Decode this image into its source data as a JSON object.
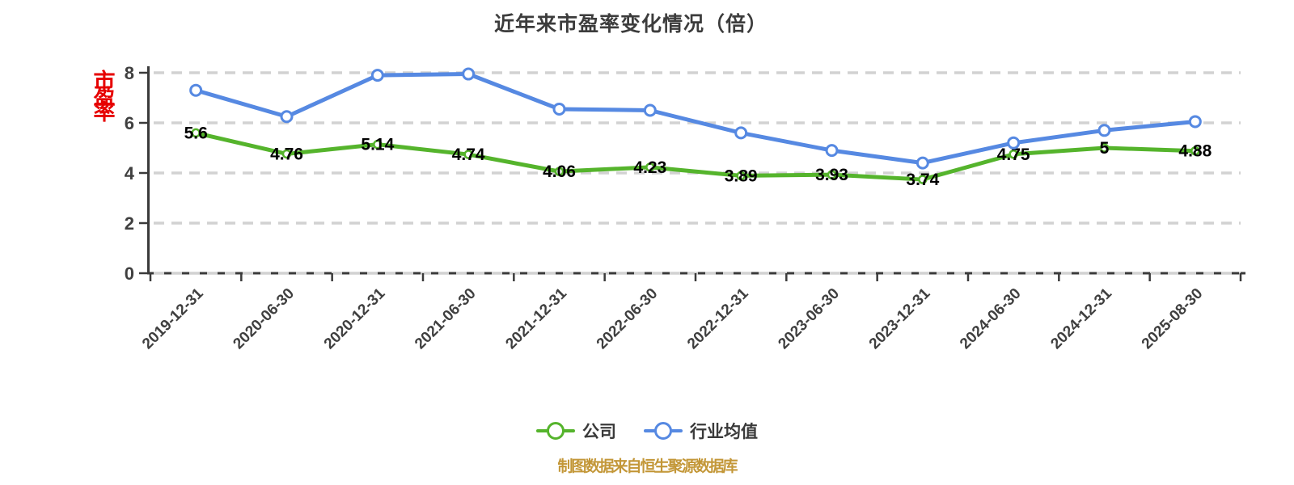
{
  "title": "近年来市盈率变化情况（倍）",
  "y_axis_side_label": "市盈率",
  "footer": "制图数据来自恒生聚源数据库",
  "legend": [
    {
      "label": "公司",
      "color": "#55b42c"
    },
    {
      "label": "行业均值",
      "color": "#5689e2"
    }
  ],
  "colors": {
    "company": "#55b42c",
    "industry": "#5689e2",
    "grid": "#d2d2d2",
    "axis": "#3a3a3a",
    "point_label": "#000000",
    "tick_text": "#3f3f3f",
    "title_text": "#3c3c3c",
    "footer_text": "#c39738",
    "side_label": "#e60000",
    "marker_fill": "#ffffff"
  },
  "chart_data": {
    "type": "line",
    "title": "近年来市盈率变化情况（倍）",
    "categories": [
      "2019-12-31",
      "2020-06-30",
      "2020-12-31",
      "2021-06-30",
      "2021-12-31",
      "2022-06-30",
      "2022-12-31",
      "2023-06-30",
      "2023-12-31",
      "2024-06-30",
      "2024-12-31",
      "2025-08-30"
    ],
    "series": [
      {
        "name": "公司",
        "color": "#55b42c",
        "values": [
          5.6,
          4.76,
          5.14,
          4.74,
          4.06,
          4.23,
          3.89,
          3.93,
          3.74,
          4.75,
          5,
          4.88
        ],
        "point_labels": [
          "5.6",
          "4.76",
          "5.14",
          "4.74",
          "4.06",
          "4.23",
          "3.89",
          "3.93",
          "3.74",
          "4.75",
          "5",
          "4.88"
        ],
        "marker_radius": 4.5,
        "marker_stroke": 2.5
      },
      {
        "name": "行业均值",
        "color": "#5689e2",
        "values": [
          7.3,
          6.25,
          7.9,
          7.95,
          6.55,
          6.5,
          5.6,
          4.9,
          4.4,
          5.2,
          5.7,
          6.05
        ],
        "point_labels": [],
        "marker_radius": 6.5,
        "marker_stroke": 3
      }
    ],
    "xlabel": "",
    "ylabel": "市盈率",
    "ylim": [
      0,
      8
    ],
    "yticks": [
      0,
      2,
      4,
      6,
      8
    ],
    "grid": "horizontal-dashed",
    "x_label_rotation": 45,
    "legend_position": "bottom"
  }
}
